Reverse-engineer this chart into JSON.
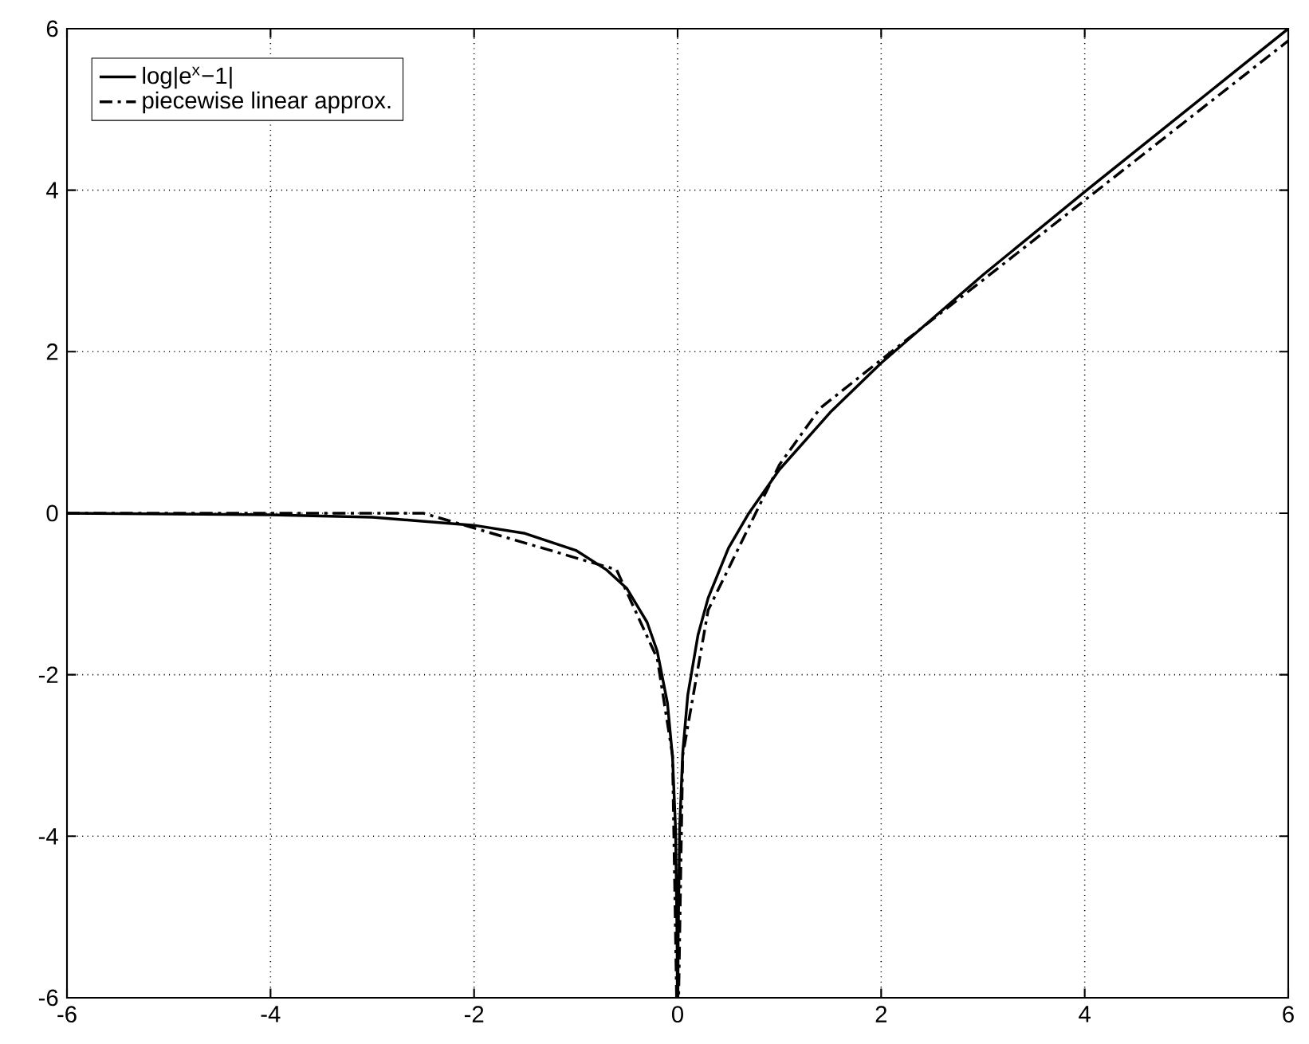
{
  "chart_data": {
    "type": "line",
    "xlim": [
      -6,
      6
    ],
    "ylim": [
      -6,
      6
    ],
    "xticks": [
      -6,
      -4,
      -2,
      0,
      2,
      4,
      6
    ],
    "yticks": [
      -6,
      -4,
      -2,
      0,
      2,
      4,
      6
    ],
    "grid": true,
    "legend": "top left",
    "series": [
      {
        "name": "log|e$^{x}$−1|",
        "color": "#000000",
        "line_style": "solid",
        "x": [
          -6,
          -4,
          -3,
          -2,
          -1.5,
          -1,
          -0.7,
          -0.5,
          -0.3,
          -0.2,
          -0.1,
          -0.05,
          -0.02,
          -0.005,
          -0.0025,
          0.0025,
          0.005,
          0.02,
          0.05,
          0.1,
          0.2,
          0.3,
          0.5,
          0.7,
          1,
          1.5,
          2,
          3,
          4,
          5,
          6
        ],
        "values": [
          0,
          -0.02,
          -0.05,
          -0.15,
          -0.25,
          -0.46,
          -0.7,
          -0.93,
          -1.35,
          -1.71,
          -2.35,
          -3.02,
          -3.92,
          -5.3,
          -6,
          -6,
          -5.3,
          -3.9,
          -2.97,
          -2.25,
          -1.51,
          -1.05,
          -0.43,
          0,
          0.54,
          1.25,
          1.86,
          2.95,
          3.98,
          4.99,
          6
        ]
      },
      {
        "name": "piecewise linear approx.",
        "color": "#000000",
        "line_style": "dashdot",
        "x": [
          -6,
          -2.5,
          -0.6,
          -0.2,
          -0.05,
          -0.01,
          0.01,
          0.05,
          0.3,
          1,
          1.4,
          2,
          6
        ],
        "values": [
          0,
          0,
          -0.7,
          -1.8,
          -3.0,
          -6,
          -6,
          -3.0,
          -1.2,
          0.6,
          1.3,
          1.9,
          5.85
        ]
      }
    ]
  }
}
